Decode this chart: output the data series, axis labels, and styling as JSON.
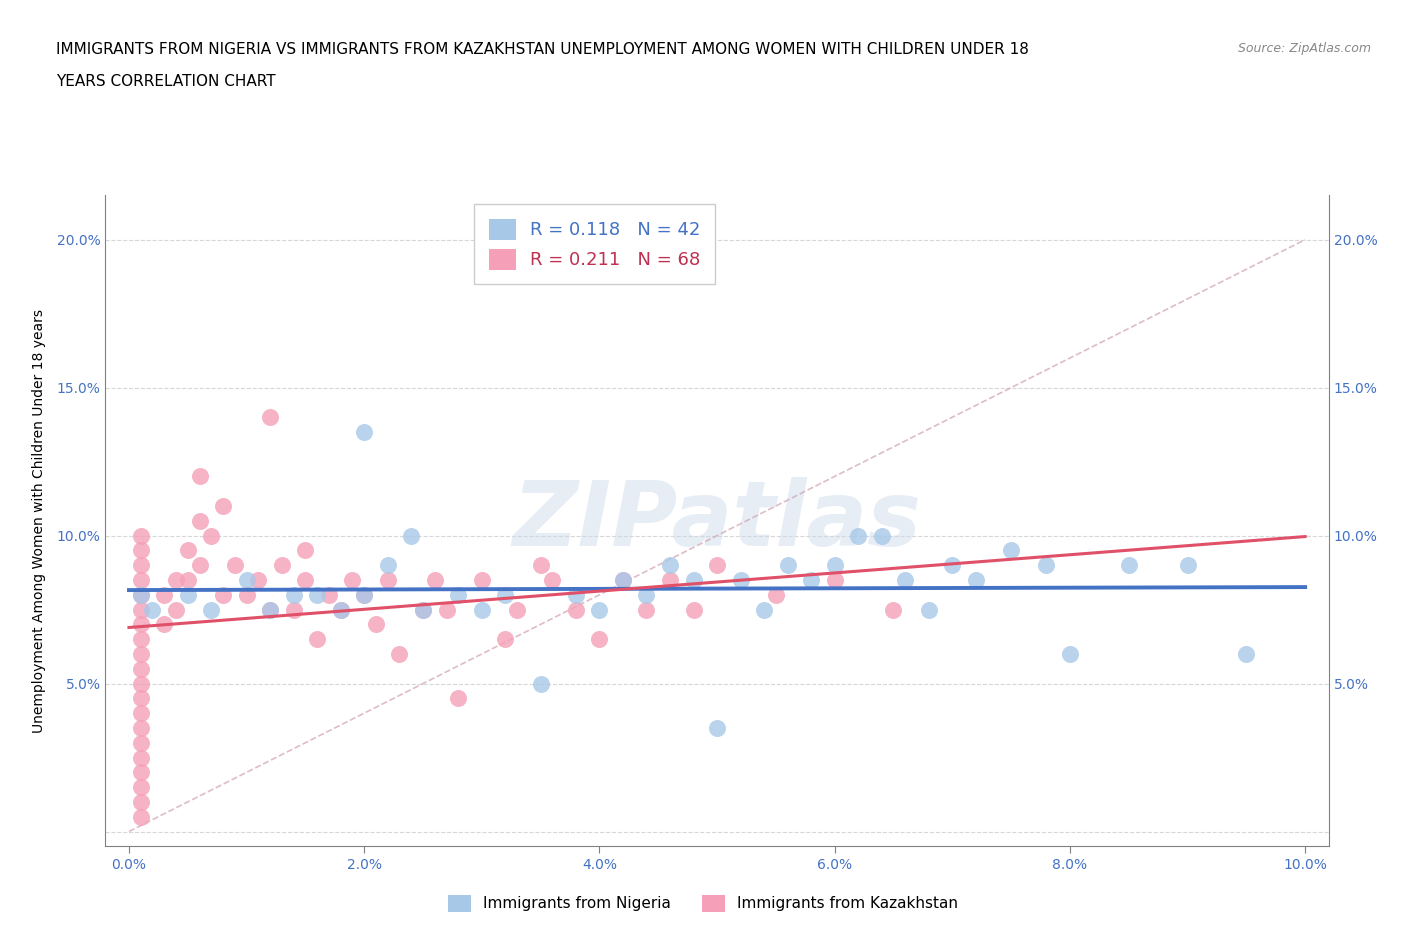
{
  "title_line1": "IMMIGRANTS FROM NIGERIA VS IMMIGRANTS FROM KAZAKHSTAN UNEMPLOYMENT AMONG WOMEN WITH CHILDREN UNDER 18",
  "title_line2": "YEARS CORRELATION CHART",
  "source": "Source: ZipAtlas.com",
  "ylabel": "Unemployment Among Women with Children Under 18 years",
  "xlim": [
    -0.002,
    0.102
  ],
  "ylim": [
    -0.005,
    0.215
  ],
  "xticks": [
    0.0,
    0.02,
    0.04,
    0.06,
    0.08,
    0.1
  ],
  "yticks": [
    0.0,
    0.05,
    0.1,
    0.15,
    0.2
  ],
  "xticklabels": [
    "0.0%",
    "2.0%",
    "4.0%",
    "6.0%",
    "8.0%",
    "10.0%"
  ],
  "yticklabels": [
    "",
    "5.0%",
    "10.0%",
    "15.0%",
    "20.0%"
  ],
  "nigeria_R": 0.118,
  "nigeria_N": 42,
  "kazakhstan_R": 0.211,
  "kazakhstan_N": 68,
  "nigeria_color": "#a8c8e8",
  "kazakhstan_color": "#f5a0b8",
  "nigeria_line_color": "#4472c4",
  "kazakhstan_line_color": "#e05068",
  "ref_line_color": "#d0a0b0",
  "nigeria_scatter_x": [
    0.001,
    0.002,
    0.005,
    0.007,
    0.01,
    0.012,
    0.014,
    0.016,
    0.018,
    0.02,
    0.02,
    0.022,
    0.024,
    0.025,
    0.028,
    0.03,
    0.032,
    0.035,
    0.038,
    0.04,
    0.042,
    0.044,
    0.046,
    0.048,
    0.05,
    0.052,
    0.054,
    0.056,
    0.058,
    0.06,
    0.062,
    0.064,
    0.066,
    0.068,
    0.07,
    0.072,
    0.075,
    0.078,
    0.08,
    0.085,
    0.09,
    0.095
  ],
  "nigeria_scatter_y": [
    0.08,
    0.075,
    0.08,
    0.075,
    0.085,
    0.075,
    0.08,
    0.08,
    0.075,
    0.08,
    0.135,
    0.09,
    0.1,
    0.075,
    0.08,
    0.075,
    0.08,
    0.05,
    0.08,
    0.075,
    0.085,
    0.08,
    0.09,
    0.085,
    0.035,
    0.085,
    0.075,
    0.09,
    0.085,
    0.09,
    0.1,
    0.1,
    0.085,
    0.075,
    0.09,
    0.085,
    0.095,
    0.09,
    0.06,
    0.09,
    0.09,
    0.06
  ],
  "kazakhstan_scatter_x": [
    0.001,
    0.001,
    0.001,
    0.001,
    0.001,
    0.001,
    0.001,
    0.001,
    0.001,
    0.001,
    0.001,
    0.001,
    0.001,
    0.001,
    0.001,
    0.001,
    0.001,
    0.001,
    0.001,
    0.001,
    0.003,
    0.003,
    0.004,
    0.004,
    0.005,
    0.005,
    0.006,
    0.006,
    0.006,
    0.007,
    0.008,
    0.008,
    0.009,
    0.01,
    0.011,
    0.012,
    0.012,
    0.013,
    0.014,
    0.015,
    0.015,
    0.016,
    0.017,
    0.018,
    0.019,
    0.02,
    0.021,
    0.022,
    0.023,
    0.025,
    0.026,
    0.027,
    0.028,
    0.03,
    0.032,
    0.033,
    0.035,
    0.036,
    0.038,
    0.04,
    0.042,
    0.044,
    0.046,
    0.048,
    0.05,
    0.055,
    0.06,
    0.065
  ],
  "kazakhstan_scatter_y": [
    0.085,
    0.08,
    0.075,
    0.09,
    0.07,
    0.065,
    0.06,
    0.055,
    0.05,
    0.045,
    0.04,
    0.035,
    0.03,
    0.025,
    0.02,
    0.015,
    0.01,
    0.005,
    0.095,
    0.1,
    0.08,
    0.07,
    0.085,
    0.075,
    0.095,
    0.085,
    0.12,
    0.105,
    0.09,
    0.1,
    0.11,
    0.08,
    0.09,
    0.08,
    0.085,
    0.075,
    0.14,
    0.09,
    0.075,
    0.085,
    0.095,
    0.065,
    0.08,
    0.075,
    0.085,
    0.08,
    0.07,
    0.085,
    0.06,
    0.075,
    0.085,
    0.075,
    0.045,
    0.085,
    0.065,
    0.075,
    0.09,
    0.085,
    0.075,
    0.065,
    0.085,
    0.075,
    0.085,
    0.075,
    0.09,
    0.08,
    0.085,
    0.075
  ],
  "watermark": "ZIPatlas",
  "legend_item_nigeria": "Immigrants from Nigeria",
  "legend_item_kazakhstan": "Immigrants from Kazakhstan",
  "title_fontsize": 11,
  "tick_fontsize": 10,
  "ylabel_fontsize": 10,
  "tick_color": "#4472c4"
}
